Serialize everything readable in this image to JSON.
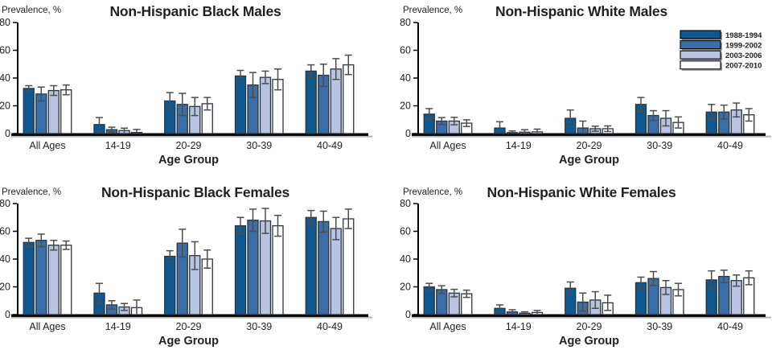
{
  "figure": {
    "ylabel": "Prevalence, %",
    "xlabel": "Age Group",
    "categories": [
      "All Ages",
      "14-19",
      "20-29",
      "30-39",
      "40-49"
    ],
    "yticks": [
      0,
      20,
      40,
      60,
      80
    ],
    "ylim": [
      0,
      80
    ],
    "grid": false,
    "legend": {
      "entries": [
        "1988-1994",
        "1999-2002",
        "2003-2006",
        "2007-2010"
      ],
      "position": "top-right of Non-Hispanic White Males panel"
    },
    "colors": {
      "series": [
        "#0f588f",
        "#3a6ea8",
        "#b7c3e0",
        "#ffffff"
      ],
      "bar_border": "#2a3440",
      "error_bar": "#4d4d4d",
      "axis": "#000000",
      "baseline_shadow": "#b5b5b5",
      "legend_shadow": "#9a9a9a",
      "text": "#231f20"
    }
  },
  "chart_data": [
    {
      "type": "bar",
      "title": "Non-Hispanic Black Males",
      "ylabel": "Prevalence, %",
      "xlabel": "Age Group",
      "ylim": [
        0,
        80
      ],
      "categories": [
        "All Ages",
        "14-19",
        "20-29",
        "30-39",
        "40-49"
      ],
      "show_legend": false,
      "series": [
        {
          "name": "1988-1994",
          "values": [
            32.5,
            6.5,
            23.5,
            41.5,
            45.0
          ],
          "errors": [
            2.0,
            5.0,
            6.0,
            4.0,
            4.5
          ]
        },
        {
          "name": "1999-2002",
          "values": [
            28.5,
            2.8,
            21.0,
            35.0,
            42.0
          ],
          "errors": [
            5.0,
            1.8,
            8.0,
            9.0,
            8.0
          ]
        },
        {
          "name": "2003-2006",
          "values": [
            31.0,
            2.2,
            19.5,
            40.5,
            46.5
          ],
          "errors": [
            3.5,
            1.7,
            6.5,
            4.5,
            7.5
          ]
        },
        {
          "name": "2007-2010",
          "values": [
            31.5,
            0.8,
            21.5,
            39.0,
            49.5
          ],
          "errors": [
            3.5,
            2.2,
            4.5,
            7.5,
            7.0
          ]
        }
      ]
    },
    {
      "type": "bar",
      "title": "Non-Hispanic White Males",
      "ylabel": "Prevalence, %",
      "xlabel": "Age Group",
      "ylim": [
        0,
        80
      ],
      "categories": [
        "All Ages",
        "14-19",
        "20-29",
        "30-39",
        "40-49"
      ],
      "show_legend": true,
      "series": [
        {
          "name": "1988-1994",
          "values": [
            14.0,
            4.0,
            11.0,
            21.0,
            15.5
          ],
          "errors": [
            4.0,
            4.5,
            6.0,
            5.0,
            5.5
          ]
        },
        {
          "name": "1999-2002",
          "values": [
            9.0,
            0.7,
            4.0,
            13.0,
            15.5
          ],
          "errors": [
            2.5,
            1.2,
            5.0,
            3.5,
            5.0
          ]
        },
        {
          "name": "2003-2006",
          "values": [
            9.0,
            1.0,
            3.5,
            11.0,
            17.0
          ],
          "errors": [
            2.7,
            1.8,
            1.8,
            5.5,
            5.0
          ]
        },
        {
          "name": "2007-2010",
          "values": [
            7.5,
            1.2,
            3.5,
            8.0,
            13.5
          ],
          "errors": [
            2.4,
            2.0,
            2.0,
            4.0,
            4.5
          ]
        }
      ]
    },
    {
      "type": "bar",
      "title": "Non-Hispanic Black Females",
      "ylabel": "Prevalence, %",
      "xlabel": "Age Group",
      "ylim": [
        0,
        80
      ],
      "categories": [
        "All Ages",
        "14-19",
        "20-29",
        "30-39",
        "40-49"
      ],
      "show_legend": false,
      "series": [
        {
          "name": "1988-1994",
          "values": [
            52.0,
            15.5,
            42.0,
            64.0,
            70.0
          ],
          "errors": [
            3.0,
            7.0,
            4.0,
            6.0,
            5.0
          ]
        },
        {
          "name": "1999-2002",
          "values": [
            53.5,
            7.0,
            51.5,
            68.0,
            67.0
          ],
          "errors": [
            4.5,
            3.0,
            10.0,
            8.0,
            7.5
          ]
        },
        {
          "name": "2003-2006",
          "values": [
            50.0,
            5.5,
            42.5,
            67.5,
            62.0
          ],
          "errors": [
            3.5,
            2.5,
            10.0,
            9.0,
            8.0
          ]
        },
        {
          "name": "2007-2010",
          "values": [
            50.0,
            5.0,
            40.0,
            64.0,
            69.0
          ],
          "errors": [
            3.0,
            5.5,
            6.5,
            7.5,
            7.0
          ]
        }
      ]
    },
    {
      "type": "bar",
      "title": "Non-Hispanic White Females",
      "ylabel": "Prevalence, %",
      "xlabel": "Age Group",
      "ylim": [
        0,
        80
      ],
      "categories": [
        "All Ages",
        "14-19",
        "20-29",
        "30-39",
        "40-49"
      ],
      "show_legend": false,
      "series": [
        {
          "name": "1988-1994",
          "values": [
            20.0,
            4.5,
            19.0,
            23.0,
            25.0
          ],
          "errors": [
            2.5,
            2.5,
            4.5,
            4.0,
            6.5
          ]
        },
        {
          "name": "1999-2002",
          "values": [
            18.0,
            2.0,
            9.0,
            26.0,
            27.5
          ],
          "errors": [
            2.8,
            1.5,
            6.5,
            5.0,
            4.5
          ]
        },
        {
          "name": "2003-2006",
          "values": [
            15.5,
            1.0,
            10.5,
            19.5,
            24.5
          ],
          "errors": [
            2.7,
            1.0,
            6.0,
            5.0,
            4.0
          ]
        },
        {
          "name": "2007-2010",
          "values": [
            15.0,
            1.5,
            8.5,
            18.0,
            26.5
          ],
          "errors": [
            2.6,
            1.5,
            5.5,
            4.5,
            5.0
          ]
        }
      ]
    }
  ]
}
